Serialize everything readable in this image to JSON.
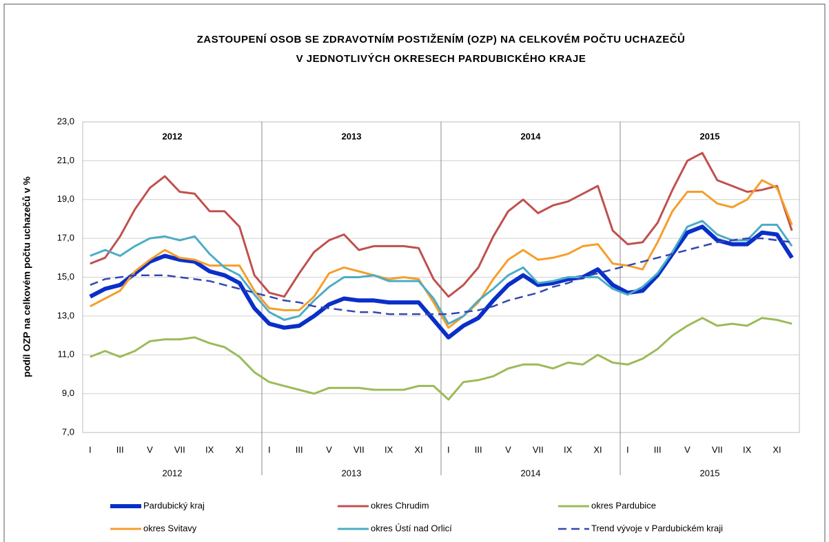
{
  "chart_data": {
    "type": "line",
    "title": [
      "ZASTOUPENÍ OSOB SE ZDRAVOTNÍM POSTIŽENÍM (OZP) NA CELKOVÉM POČTU UCHAZEČŮ",
      "V JEDNOTLIVÝCH OKRESECH PARDUBICKÉHO KRAJE"
    ],
    "ylabel": "podíl OZP na celkovém počtu uchazečů v %",
    "years": [
      "2012",
      "2013",
      "2014",
      "2015"
    ],
    "categories": [
      "I",
      null,
      "III",
      null,
      "V",
      null,
      "VII",
      null,
      "IX",
      null,
      "XI",
      null,
      "I",
      null,
      "III",
      null,
      "V",
      null,
      "VII",
      null,
      "IX",
      null,
      "XI",
      null,
      "I",
      null,
      "III",
      null,
      "V",
      null,
      "VII",
      null,
      "IX",
      null,
      "XI",
      null,
      "I",
      null,
      "III",
      null,
      "V",
      null,
      "VII",
      null,
      "IX",
      null,
      "XI",
      null
    ],
    "ylim": [
      7,
      23
    ],
    "yticks": [
      {
        "value": 7,
        "label": "7,0"
      },
      {
        "value": 9,
        "label": "9,0"
      },
      {
        "value": 11,
        "label": "11,0"
      },
      {
        "value": 13,
        "label": "13,0"
      },
      {
        "value": 15,
        "label": "15,0"
      },
      {
        "value": 17,
        "label": "17,0"
      },
      {
        "value": 19,
        "label": "19,0"
      },
      {
        "value": 21,
        "label": "21,0"
      },
      {
        "value": 23,
        "label": "23,0"
      }
    ],
    "grid": true,
    "series": [
      {
        "name": "Pardubický kraj",
        "color": "#0a2fc8",
        "width": 6,
        "values": [
          14.0,
          14.4,
          14.6,
          15.2,
          15.8,
          16.1,
          15.9,
          15.8,
          15.3,
          15.1,
          14.7,
          13.4,
          12.6,
          12.4,
          12.5,
          13.0,
          13.6,
          13.9,
          13.8,
          13.8,
          13.7,
          13.7,
          13.7,
          12.8,
          11.9,
          12.5,
          12.9,
          13.8,
          14.6,
          15.1,
          14.6,
          14.7,
          14.9,
          15.0,
          15.4,
          14.6,
          14.2,
          14.3,
          15.1,
          16.2,
          17.3,
          17.6,
          16.9,
          16.7,
          16.7,
          17.3,
          17.2,
          16.0
        ]
      },
      {
        "name": "okres Chrudim",
        "color": "#c0504d",
        "width": 3,
        "values": [
          15.7,
          16.0,
          17.1,
          18.5,
          19.6,
          20.2,
          19.4,
          19.3,
          18.4,
          18.4,
          17.6,
          15.1,
          14.2,
          14.0,
          15.2,
          16.3,
          16.9,
          17.2,
          16.4,
          16.6,
          16.6,
          16.6,
          16.5,
          14.9,
          14.0,
          14.6,
          15.5,
          17.1,
          18.4,
          19.0,
          18.3,
          18.7,
          18.9,
          19.3,
          19.7,
          17.4,
          16.7,
          16.8,
          17.8,
          19.5,
          21.0,
          21.4,
          20.0,
          19.7,
          19.4,
          19.5,
          19.7,
          17.4
        ]
      },
      {
        "name": "okres Pardubice",
        "color": "#9bbb59",
        "width": 3,
        "values": [
          10.9,
          11.2,
          10.9,
          11.2,
          11.7,
          11.8,
          11.8,
          11.9,
          11.6,
          11.4,
          10.9,
          10.1,
          9.6,
          9.4,
          9.2,
          9.0,
          9.3,
          9.3,
          9.3,
          9.2,
          9.2,
          9.2,
          9.4,
          9.4,
          8.7,
          9.6,
          9.7,
          9.9,
          10.3,
          10.5,
          10.5,
          10.3,
          10.6,
          10.5,
          11.0,
          10.6,
          10.5,
          10.8,
          11.3,
          12.0,
          12.5,
          12.9,
          12.5,
          12.6,
          12.5,
          12.9,
          12.8,
          12.6
        ]
      },
      {
        "name": "okres Svitavy",
        "color": "#f59e2a",
        "width": 3,
        "values": [
          13.5,
          13.9,
          14.3,
          15.3,
          15.9,
          16.4,
          16.0,
          15.9,
          15.6,
          15.6,
          15.6,
          14.3,
          13.4,
          13.3,
          13.3,
          14.0,
          15.2,
          15.5,
          15.3,
          15.1,
          14.9,
          15.0,
          14.9,
          13.7,
          12.4,
          13.0,
          13.7,
          14.9,
          15.9,
          16.4,
          15.9,
          16.0,
          16.2,
          16.6,
          16.7,
          15.7,
          15.6,
          15.4,
          16.8,
          18.4,
          19.4,
          19.4,
          18.8,
          18.6,
          19.0,
          20.0,
          19.6,
          17.7
        ]
      },
      {
        "name": "okres Ústí nad Orlicí",
        "color": "#4bacc6",
        "width": 3,
        "values": [
          16.1,
          16.4,
          16.1,
          16.6,
          17.0,
          17.1,
          16.9,
          17.1,
          16.2,
          15.5,
          15.1,
          14.1,
          13.2,
          12.8,
          13.0,
          13.8,
          14.5,
          15.0,
          15.0,
          15.1,
          14.8,
          14.8,
          14.8,
          13.9,
          12.6,
          13.0,
          13.8,
          14.4,
          15.1,
          15.5,
          14.7,
          14.8,
          15.0,
          15.0,
          15.0,
          14.4,
          14.1,
          14.5,
          15.2,
          16.3,
          17.6,
          17.9,
          17.2,
          16.9,
          16.9,
          17.7,
          17.7,
          16.6
        ]
      },
      {
        "name": "Trend vývoje v Pardubickém kraji",
        "color": "#3446b0",
        "width": 2.5,
        "dashed": true,
        "values": [
          14.6,
          14.9,
          15.0,
          15.1,
          15.1,
          15.1,
          15.0,
          14.9,
          14.8,
          14.6,
          14.4,
          14.2,
          14.0,
          13.8,
          13.7,
          13.5,
          13.4,
          13.3,
          13.2,
          13.2,
          13.1,
          13.1,
          13.1,
          13.1,
          13.1,
          13.2,
          13.3,
          13.5,
          13.8,
          14.0,
          14.2,
          14.5,
          14.7,
          15.0,
          15.2,
          15.4,
          15.6,
          15.8,
          16.0,
          16.2,
          16.4,
          16.6,
          16.8,
          16.9,
          17.0,
          17.0,
          16.9,
          16.8
        ]
      }
    ]
  }
}
